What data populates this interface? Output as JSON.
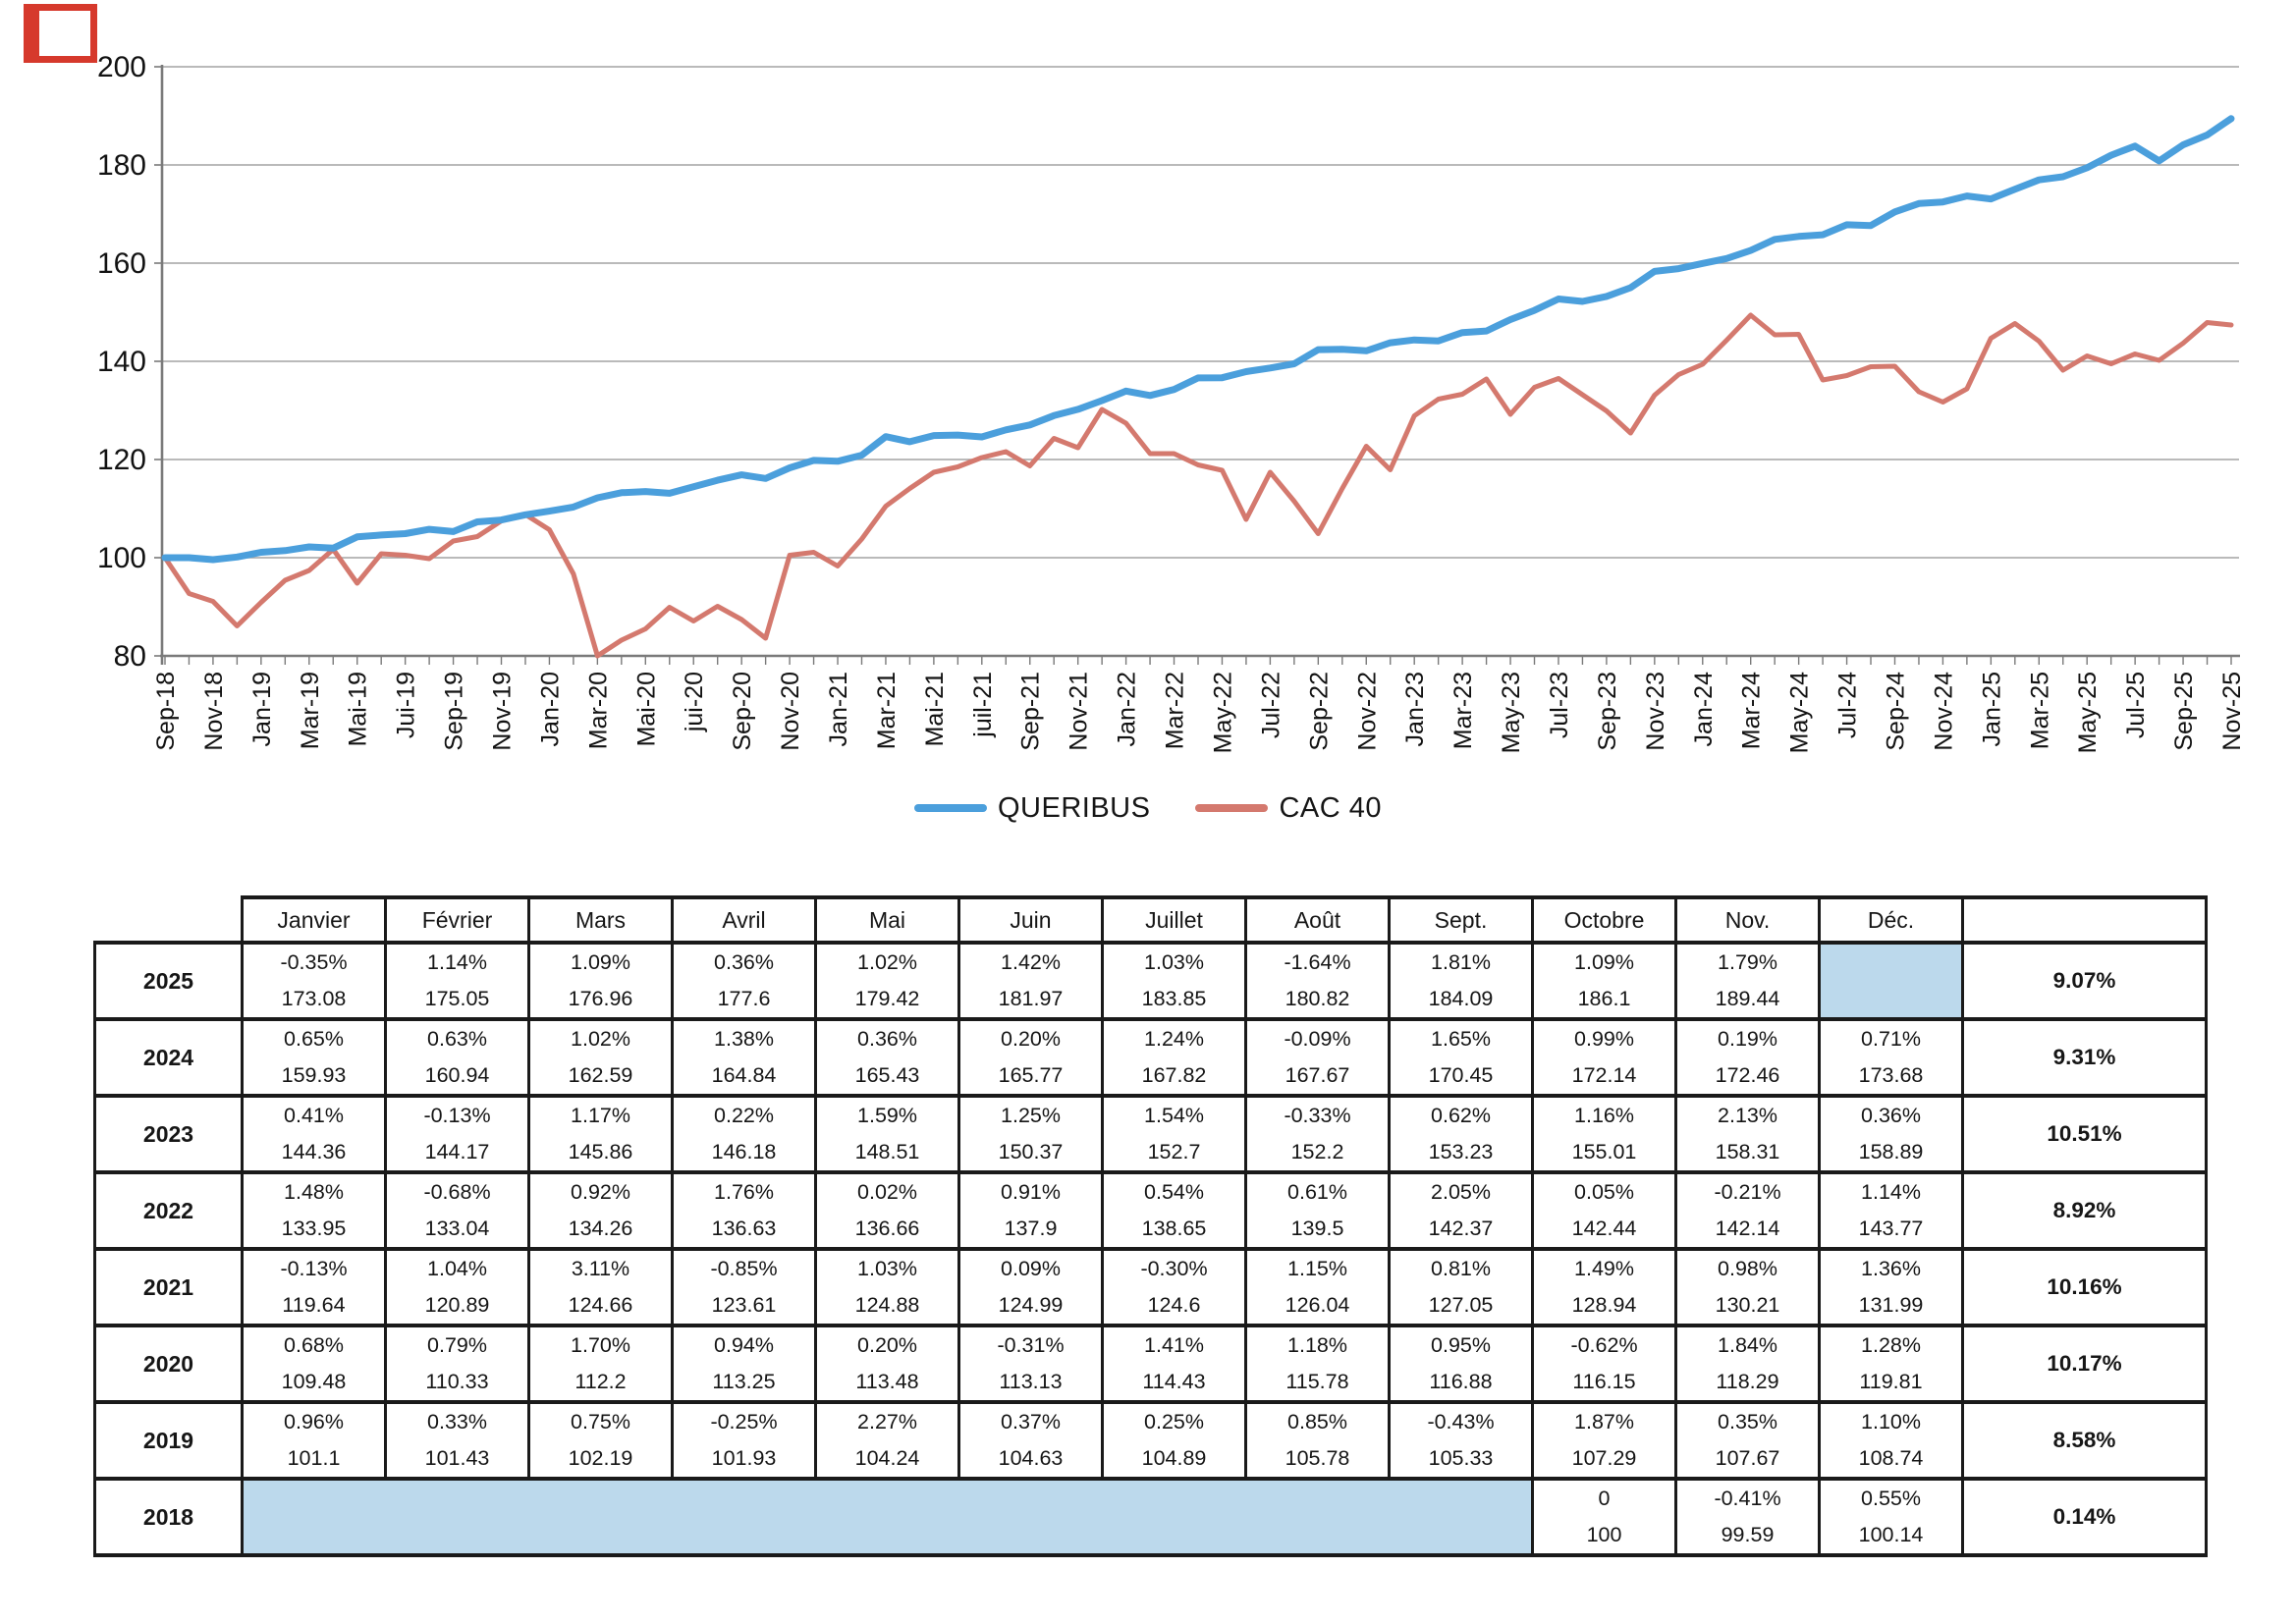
{
  "colors": {
    "queribus_line": "#4b9fdc",
    "cac40_line": "#d4796e",
    "shaded_cell": "#bcd9ec",
    "gridline": "#a3a3a3",
    "axis": "#7a7a7a",
    "scan_mark": "#d6392c"
  },
  "chart": {
    "legend": [
      {
        "label": "QUERIBUS",
        "color": "#4b9fdc"
      },
      {
        "label": "CAC 40",
        "color": "#d4796e"
      }
    ]
  },
  "chart_data": {
    "type": "line",
    "title": "",
    "xlabel": "",
    "ylabel": "",
    "ylim": [
      80,
      200
    ],
    "y_ticks": [
      200,
      180,
      160,
      140,
      120,
      100,
      80
    ],
    "grid": true,
    "legend_position": "bottom",
    "x_axis": {
      "start": "Sep-18",
      "end": "Nov-25",
      "interval": "monthly",
      "tick_labels": [
        "Sep-18",
        "Nov-18",
        "Jan-19",
        "Mar-19",
        "Mai-19",
        "Jui-19",
        "Sep-19",
        "Nov-19",
        "Jan-20",
        "Mar-20",
        "Mai-20",
        "jui-20",
        "Sep-20",
        "Nov-20",
        "Jan-21",
        "Mar-21",
        "Mai-21",
        "juil-21",
        "Sep-21",
        "Nov-21",
        "Jan-22",
        "Mar-22",
        "May-22",
        "Jul-22",
        "Sep-22",
        "Nov-22",
        "Jan-23",
        "Mar-23",
        "May-23",
        "Jul-23",
        "Sep-23",
        "Nov-23",
        "Jan-24",
        "Mar-24",
        "May-24",
        "Jul-24",
        "Sep-24",
        "Nov-24",
        "Jan-25",
        "Mar-25",
        "May-25",
        "Jul-25",
        "Sep-25",
        "Nov-25"
      ]
    },
    "series": [
      {
        "name": "QUERIBUS",
        "color": "#4b9fdc",
        "values": [
          100,
          100,
          99.59,
          100.14,
          101.1,
          101.43,
          102.19,
          101.93,
          104.24,
          104.63,
          104.89,
          105.78,
          105.33,
          107.29,
          107.67,
          108.74,
          109.48,
          110.33,
          112.2,
          113.25,
          113.48,
          113.13,
          114.43,
          115.78,
          116.88,
          116.15,
          118.29,
          119.81,
          119.64,
          120.89,
          124.66,
          123.61,
          124.88,
          124.99,
          124.6,
          126.04,
          127.05,
          128.94,
          130.21,
          131.99,
          133.95,
          133.04,
          134.26,
          136.63,
          136.66,
          137.9,
          138.65,
          139.5,
          142.37,
          142.44,
          142.14,
          143.77,
          144.36,
          144.17,
          145.86,
          146.18,
          148.51,
          150.37,
          152.7,
          152.2,
          153.23,
          155.01,
          158.31,
          158.89,
          159.93,
          160.94,
          162.59,
          164.84,
          165.43,
          165.77,
          167.82,
          167.67,
          170.45,
          172.14,
          172.46,
          173.68,
          173.08,
          175.05,
          176.96,
          177.6,
          179.42,
          181.97,
          183.85,
          180.82,
          184.09,
          186.1,
          189.44
        ]
      },
      {
        "name": "CAC 40",
        "color": "#d4796e",
        "values": [
          100,
          92.7,
          91.1,
          86.1,
          90.9,
          95.4,
          97.4,
          101.7,
          94.8,
          100.8,
          100.5,
          99.8,
          103.4,
          104.3,
          107.5,
          108.8,
          105.7,
          96.7,
          80,
          83.2,
          85.5,
          89.9,
          87.1,
          90.1,
          87.4,
          83.6,
          100.5,
          101.1,
          98.3,
          103.8,
          110.5,
          114.1,
          117.4,
          118.5,
          120.4,
          121.6,
          118.7,
          124.3,
          122.4,
          130.2,
          127.4,
          121.2,
          121.2,
          118.9,
          117.8,
          107.8,
          117.4,
          111.5,
          104.9,
          114.1,
          122.7,
          117.9,
          128.9,
          132.3,
          133.3,
          136.4,
          129.2,
          134.7,
          136.5,
          133.2,
          129.9,
          125.4,
          133.1,
          137.3,
          139.4,
          144.3,
          149.4,
          145.4,
          145.5,
          136.2,
          137.1,
          138.9,
          139,
          133.8,
          131.7,
          134.4,
          144.7,
          147.7,
          144.1,
          138.2,
          141.1,
          139.5,
          141.5,
          140.2,
          143.7,
          147.9,
          147.4
        ]
      }
    ]
  },
  "table": {
    "month_headers": [
      "Janvier",
      "Février",
      "Mars",
      "Avril",
      "Mai",
      "Juin",
      "Juillet",
      "Août",
      "Sept.",
      "Octobre",
      "Nov.",
      "Déc."
    ],
    "total_header": "",
    "rows": [
      {
        "year": "2025",
        "months": [
          {
            "p": "-0.35%",
            "v": "173.08"
          },
          {
            "p": "1.14%",
            "v": "175.05"
          },
          {
            "p": "1.09%",
            "v": "176.96"
          },
          {
            "p": "0.36%",
            "v": "177.6"
          },
          {
            "p": "1.02%",
            "v": "179.42"
          },
          {
            "p": "1.42%",
            "v": "181.97"
          },
          {
            "p": "1.03%",
            "v": "183.85"
          },
          {
            "p": "-1.64%",
            "v": "180.82"
          },
          {
            "p": "1.81%",
            "v": "184.09"
          },
          {
            "p": "1.09%",
            "v": "186.1"
          },
          {
            "p": "1.79%",
            "v": "189.44"
          },
          {
            "shaded": true
          }
        ],
        "total": "9.07%"
      },
      {
        "year": "2024",
        "months": [
          {
            "p": "0.65%",
            "v": "159.93"
          },
          {
            "p": "0.63%",
            "v": "160.94"
          },
          {
            "p": "1.02%",
            "v": "162.59"
          },
          {
            "p": "1.38%",
            "v": "164.84"
          },
          {
            "p": "0.36%",
            "v": "165.43"
          },
          {
            "p": "0.20%",
            "v": "165.77"
          },
          {
            "p": "1.24%",
            "v": "167.82"
          },
          {
            "p": "-0.09%",
            "v": "167.67"
          },
          {
            "p": "1.65%",
            "v": "170.45"
          },
          {
            "p": "0.99%",
            "v": "172.14"
          },
          {
            "p": "0.19%",
            "v": "172.46"
          },
          {
            "p": "0.71%",
            "v": "173.68"
          }
        ],
        "total": "9.31%"
      },
      {
        "year": "2023",
        "months": [
          {
            "p": "0.41%",
            "v": "144.36"
          },
          {
            "p": "-0.13%",
            "v": "144.17"
          },
          {
            "p": "1.17%",
            "v": "145.86"
          },
          {
            "p": "0.22%",
            "v": "146.18"
          },
          {
            "p": "1.59%",
            "v": "148.51"
          },
          {
            "p": "1.25%",
            "v": "150.37"
          },
          {
            "p": "1.54%",
            "v": "152.7"
          },
          {
            "p": "-0.33%",
            "v": "152.2"
          },
          {
            "p": "0.62%",
            "v": "153.23"
          },
          {
            "p": "1.16%",
            "v": "155.01"
          },
          {
            "p": "2.13%",
            "v": "158.31"
          },
          {
            "p": "0.36%",
            "v": "158.89"
          }
        ],
        "total": "10.51%"
      },
      {
        "year": "2022",
        "months": [
          {
            "p": "1.48%",
            "v": "133.95"
          },
          {
            "p": "-0.68%",
            "v": "133.04"
          },
          {
            "p": "0.92%",
            "v": "134.26"
          },
          {
            "p": "1.76%",
            "v": "136.63"
          },
          {
            "p": "0.02%",
            "v": "136.66"
          },
          {
            "p": "0.91%",
            "v": "137.9"
          },
          {
            "p": "0.54%",
            "v": "138.65"
          },
          {
            "p": "0.61%",
            "v": "139.5"
          },
          {
            "p": "2.05%",
            "v": "142.37"
          },
          {
            "p": "0.05%",
            "v": "142.44"
          },
          {
            "p": "-0.21%",
            "v": "142.14"
          },
          {
            "p": "1.14%",
            "v": "143.77"
          }
        ],
        "total": "8.92%"
      },
      {
        "year": "2021",
        "months": [
          {
            "p": "-0.13%",
            "v": "119.64"
          },
          {
            "p": "1.04%",
            "v": "120.89"
          },
          {
            "p": "3.11%",
            "v": "124.66"
          },
          {
            "p": "-0.85%",
            "v": "123.61"
          },
          {
            "p": "1.03%",
            "v": "124.88"
          },
          {
            "p": "0.09%",
            "v": "124.99"
          },
          {
            "p": "-0.30%",
            "v": "124.6"
          },
          {
            "p": "1.15%",
            "v": "126.04"
          },
          {
            "p": "0.81%",
            "v": "127.05"
          },
          {
            "p": "1.49%",
            "v": "128.94"
          },
          {
            "p": "0.98%",
            "v": "130.21"
          },
          {
            "p": "1.36%",
            "v": "131.99"
          }
        ],
        "total": "10.16%"
      },
      {
        "year": "2020",
        "months": [
          {
            "p": "0.68%",
            "v": "109.48"
          },
          {
            "p": "0.79%",
            "v": "110.33"
          },
          {
            "p": "1.70%",
            "v": "112.2"
          },
          {
            "p": "0.94%",
            "v": "113.25"
          },
          {
            "p": "0.20%",
            "v": "113.48"
          },
          {
            "p": "-0.31%",
            "v": "113.13"
          },
          {
            "p": "1.41%",
            "v": "114.43"
          },
          {
            "p": "1.18%",
            "v": "115.78"
          },
          {
            "p": "0.95%",
            "v": "116.88"
          },
          {
            "p": "-0.62%",
            "v": "116.15"
          },
          {
            "p": "1.84%",
            "v": "118.29"
          },
          {
            "p": "1.28%",
            "v": "119.81"
          }
        ],
        "total": "10.17%"
      },
      {
        "year": "2019",
        "months": [
          {
            "p": "0.96%",
            "v": "101.1"
          },
          {
            "p": "0.33%",
            "v": "101.43"
          },
          {
            "p": "0.75%",
            "v": "102.19"
          },
          {
            "p": "-0.25%",
            "v": "101.93"
          },
          {
            "p": "2.27%",
            "v": "104.24"
          },
          {
            "p": "0.37%",
            "v": "104.63"
          },
          {
            "p": "0.25%",
            "v": "104.89"
          },
          {
            "p": "0.85%",
            "v": "105.78"
          },
          {
            "p": "-0.43%",
            "v": "105.33"
          },
          {
            "p": "1.87%",
            "v": "107.29"
          },
          {
            "p": "0.35%",
            "v": "107.67"
          },
          {
            "p": "1.10%",
            "v": "108.74"
          }
        ],
        "total": "8.58%"
      },
      {
        "year": "2018",
        "months": [
          {
            "shaded": true,
            "span": 9
          },
          {
            "p": "0",
            "v": "100"
          },
          {
            "p": "-0.41%",
            "v": "99.59"
          },
          {
            "p": "0.55%",
            "v": "100.14"
          }
        ],
        "total": "0.14%"
      }
    ]
  }
}
